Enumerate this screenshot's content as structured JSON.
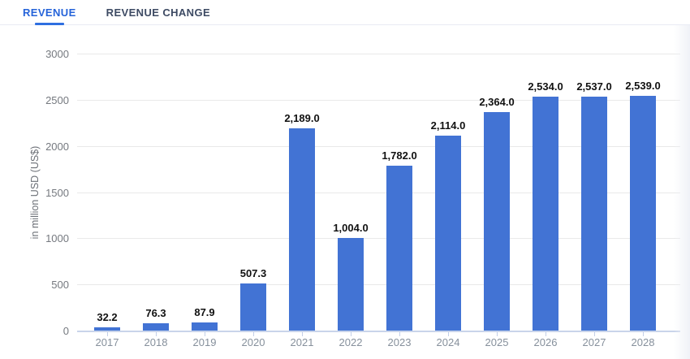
{
  "tabs": [
    {
      "label": "REVENUE",
      "active": true
    },
    {
      "label": "REVENUE CHANGE",
      "active": false
    }
  ],
  "chart_data": {
    "type": "bar",
    "categories": [
      "2017",
      "2018",
      "2019",
      "2020",
      "2021",
      "2022",
      "2023",
      "2024",
      "2025",
      "2026",
      "2027",
      "2028"
    ],
    "values": [
      32.2,
      76.3,
      87.9,
      507.3,
      2189.0,
      1004.0,
      1782.0,
      2114.0,
      2364.0,
      2534.0,
      2537.0,
      2539.0
    ],
    "value_labels": [
      "32.2",
      "76.3",
      "87.9",
      "507.3",
      "2,189.0",
      "1,004.0",
      "1,782.0",
      "2,114.0",
      "2,364.0",
      "2,534.0",
      "2,537.0",
      "2,539.0"
    ],
    "title": "",
    "xlabel": "",
    "ylabel": "in million USD (US$)",
    "yticks": [
      0,
      500,
      1000,
      1500,
      2000,
      2500,
      3000
    ],
    "ylim": [
      0,
      3000
    ],
    "grid": true,
    "legend": false,
    "bar_color": "#4273d4"
  },
  "colors": {
    "active_tab": "#2563d9",
    "inactive_tab": "#3d4a63",
    "tab_underline": "#2f6fe0",
    "bar": "#4273d4",
    "axis_line": "#c9d4ea",
    "gridline": "#e9e9e9",
    "y_tick_label": "#75797f",
    "x_tick_label": "#86909c",
    "value_label": "#111111"
  }
}
